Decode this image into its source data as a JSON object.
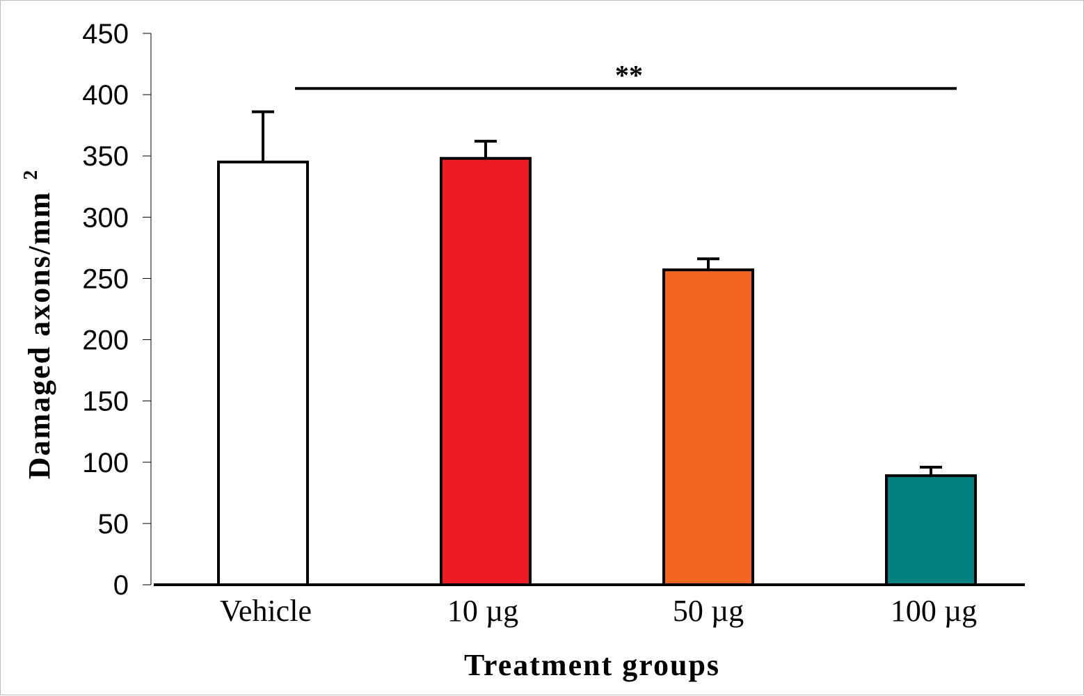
{
  "chart_data": {
    "type": "bar",
    "title": "",
    "xlabel": "Treatment groups",
    "ylabel": "Damaged axons/mm",
    "ylabel_superscript": "2",
    "ylim": [
      0,
      450
    ],
    "yticks": [
      0,
      50,
      100,
      150,
      200,
      250,
      300,
      350,
      400,
      450
    ],
    "categories": [
      "Vehicle",
      "10 µg",
      "50 µg",
      "100 µg"
    ],
    "values": [
      345,
      348,
      257,
      89
    ],
    "errors": [
      41,
      14,
      9,
      7
    ],
    "colors": [
      "#ffffff",
      "#ed1c24",
      "#f26522",
      "#008080"
    ],
    "significance": {
      "label": "**",
      "from_category": "Vehicle",
      "to_category": "100 µg",
      "y": 405
    },
    "grid": false,
    "legend": "none"
  }
}
